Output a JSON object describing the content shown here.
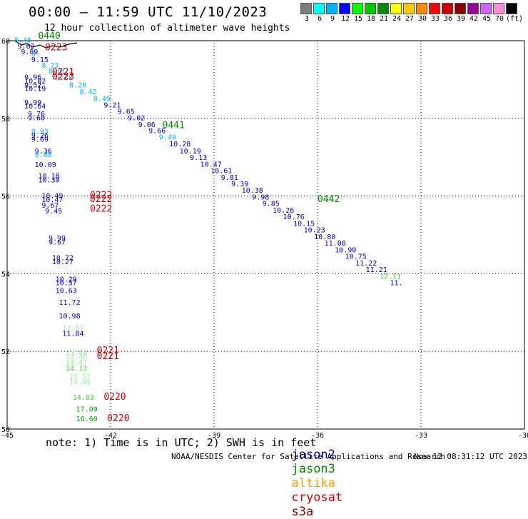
{
  "header": {
    "title": "00:00 – 11:59 UTC 11/10/2023",
    "subtitle": "12 hour collection of altimeter wave heights"
  },
  "color_scale": {
    "colors": [
      "#7d7d7d",
      "#00ffff",
      "#00b4ff",
      "#0000ff",
      "#00ff00",
      "#00c800",
      "#008c00",
      "#ffff00",
      "#ffc800",
      "#ff8c00",
      "#ff0000",
      "#c80000",
      "#8c0000",
      "#9b009b",
      "#d264ff",
      "#ff8cd7",
      "#000000"
    ],
    "labels": [
      "3",
      "6",
      "9",
      "12",
      "15",
      "18",
      "21",
      "24",
      "27",
      "30",
      "33",
      "36",
      "39",
      "42",
      "45",
      "70",
      "(ft)"
    ]
  },
  "satellites": {
    "jason2": {
      "name": "jason2",
      "color": "#0000cc"
    },
    "jason3": {
      "name": "jason3",
      "color": "#008800"
    },
    "altika": {
      "name": "altika",
      "color": "#ff9900"
    },
    "cryosat": {
      "name": "cryosat",
      "color": "#cc0000"
    },
    "s3a": {
      "name": "s3a",
      "color": "#880000"
    }
  },
  "footnote": "note: 1) Time is in UTC; 2) SWH is in feet",
  "credit": {
    "left": "NOAA/NESDIS Center for Satellite Applications and Research",
    "right": "Nov 12 08:31:12 UTC 2023"
  },
  "chart_data": {
    "type": "scatter",
    "xlim": [
      -45,
      -30
    ],
    "ylim": [
      50,
      60
    ],
    "x_ticks": [
      -45,
      -42,
      -39,
      -36,
      -33,
      -30
    ],
    "y_ticks": [
      50,
      52,
      54,
      56,
      58,
      60
    ],
    "grid": true,
    "wave_heights": [
      {
        "x": -44.8,
        "y": 59.95,
        "text": "8.48",
        "color": "#00b4ff"
      },
      {
        "x": -44.7,
        "y": 59.8,
        "text": "9.62",
        "color": "#0000cc"
      },
      {
        "x": -44.6,
        "y": 59.65,
        "text": "9.89",
        "color": "#0000cc"
      },
      {
        "x": -44.3,
        "y": 59.6,
        "text": "8.",
        "color": "#00b4ff"
      },
      {
        "x": -44.3,
        "y": 59.45,
        "text": "9.15",
        "color": "#0000cc"
      },
      {
        "x": -44.0,
        "y": 59.3,
        "text": "8.73",
        "color": "#00b4ff"
      },
      {
        "x": -43.8,
        "y": 59.15,
        "text": "8.91",
        "color": "#00b4ff"
      },
      {
        "x": -43.6,
        "y": 58.98,
        "text": "8.68",
        "color": "#00b4ff"
      },
      {
        "x": -43.2,
        "y": 58.8,
        "text": "8.28",
        "color": "#00b4ff"
      },
      {
        "x": -42.9,
        "y": 58.62,
        "text": "8.42",
        "color": "#00b4ff"
      },
      {
        "x": -42.5,
        "y": 58.45,
        "text": "8.49",
        "color": "#00b4ff"
      },
      {
        "x": -42.2,
        "y": 58.28,
        "text": "9.21",
        "color": "#0000cc"
      },
      {
        "x": -41.8,
        "y": 58.12,
        "text": "9.65",
        "color": "#0000cc"
      },
      {
        "x": -41.5,
        "y": 57.95,
        "text": "9.02",
        "color": "#0000cc"
      },
      {
        "x": -41.2,
        "y": 57.78,
        "text": "9.06",
        "color": "#0000cc"
      },
      {
        "x": -40.9,
        "y": 57.62,
        "text": "9.66",
        "color": "#0000cc"
      },
      {
        "x": -40.6,
        "y": 57.45,
        "text": "9.49",
        "color": "#00b4ff"
      },
      {
        "x": -40.3,
        "y": 57.28,
        "text": "10.28",
        "color": "#0000cc"
      },
      {
        "x": -40.0,
        "y": 57.1,
        "text": "10.19",
        "color": "#0000cc"
      },
      {
        "x": -39.7,
        "y": 56.93,
        "text": "9.13",
        "color": "#0000cc"
      },
      {
        "x": -39.4,
        "y": 56.76,
        "text": "10.47",
        "color": "#0000cc"
      },
      {
        "x": -39.1,
        "y": 56.59,
        "text": "10.61",
        "color": "#0000cc"
      },
      {
        "x": -38.8,
        "y": 56.42,
        "text": "9.81",
        "color": "#0000cc"
      },
      {
        "x": -38.5,
        "y": 56.25,
        "text": "9.39",
        "color": "#0000cc"
      },
      {
        "x": -38.2,
        "y": 56.08,
        "text": "10.38",
        "color": "#0000cc"
      },
      {
        "x": -37.9,
        "y": 55.91,
        "text": "9.98",
        "color": "#0000cc"
      },
      {
        "x": -37.6,
        "y": 55.74,
        "text": "9.85",
        "color": "#0000cc"
      },
      {
        "x": -37.3,
        "y": 55.57,
        "text": "10.26",
        "color": "#0000cc"
      },
      {
        "x": -37.0,
        "y": 55.4,
        "text": "10.76",
        "color": "#0000cc"
      },
      {
        "x": -36.7,
        "y": 55.23,
        "text": "10.15",
        "color": "#0000cc"
      },
      {
        "x": -36.4,
        "y": 55.06,
        "text": "10.23",
        "color": "#0000cc"
      },
      {
        "x": -36.1,
        "y": 54.89,
        "text": "10.80",
        "color": "#0000cc"
      },
      {
        "x": -35.8,
        "y": 54.72,
        "text": "11.08",
        "color": "#0000cc"
      },
      {
        "x": -35.5,
        "y": 54.55,
        "text": "10.90",
        "color": "#0000cc"
      },
      {
        "x": -35.2,
        "y": 54.38,
        "text": "10.75",
        "color": "#0000cc"
      },
      {
        "x": -34.9,
        "y": 54.21,
        "text": "11.22",
        "color": "#0000cc"
      },
      {
        "x": -34.6,
        "y": 54.04,
        "text": "11.21",
        "color": "#0000cc"
      },
      {
        "x": -34.2,
        "y": 53.87,
        "text": "12.11",
        "color": "#44cc44"
      },
      {
        "x": -33.9,
        "y": 53.7,
        "text": "11.",
        "color": "#0000cc"
      },
      {
        "x": -44.5,
        "y": 59.0,
        "text": "9.96",
        "color": "#0000cc"
      },
      {
        "x": -44.5,
        "y": 58.9,
        "text": "10.02",
        "color": "#0000cc"
      },
      {
        "x": -44.5,
        "y": 58.8,
        "text": "9.52",
        "color": "#0000cc"
      },
      {
        "x": -44.5,
        "y": 58.7,
        "text": "10.19",
        "color": "#0000cc"
      },
      {
        "x": -44.5,
        "y": 58.35,
        "text": "9.99",
        "color": "#0000cc"
      },
      {
        "x": -44.5,
        "y": 58.25,
        "text": "10.64",
        "color": "#0000cc"
      },
      {
        "x": -44.4,
        "y": 58.05,
        "text": "9.76",
        "color": "#0000cc"
      },
      {
        "x": -44.4,
        "y": 57.95,
        "text": "9.60",
        "color": "#0000cc"
      },
      {
        "x": -44.3,
        "y": 57.6,
        "text": "8.93",
        "color": "#00b4ff"
      },
      {
        "x": -44.3,
        "y": 57.5,
        "text": "9.26",
        "color": "#0000cc"
      },
      {
        "x": -44.3,
        "y": 57.4,
        "text": "9.69",
        "color": "#0000cc"
      },
      {
        "x": -44.2,
        "y": 57.1,
        "text": "9.36",
        "color": "#0000cc"
      },
      {
        "x": -44.2,
        "y": 57.0,
        "text": "8.88",
        "color": "#00b4ff"
      },
      {
        "x": -44.2,
        "y": 56.75,
        "text": "10.09",
        "color": "#0000cc"
      },
      {
        "x": -44.1,
        "y": 56.45,
        "text": "10.18",
        "color": "#0000cc"
      },
      {
        "x": -44.1,
        "y": 56.35,
        "text": "10.30",
        "color": "#0000cc"
      },
      {
        "x": -44.0,
        "y": 55.95,
        "text": "10.49",
        "color": "#0000cc"
      },
      {
        "x": -44.0,
        "y": 55.85,
        "text": "10.47",
        "color": "#0000cc"
      },
      {
        "x": -44.0,
        "y": 55.7,
        "text": "9.67",
        "color": "#0000cc"
      },
      {
        "x": -43.9,
        "y": 55.55,
        "text": "9.45",
        "color": "#0000cc"
      },
      {
        "x": -43.8,
        "y": 54.85,
        "text": "9.99",
        "color": "#0000cc"
      },
      {
        "x": -43.8,
        "y": 54.75,
        "text": "9.67",
        "color": "#0000cc"
      },
      {
        "x": -43.7,
        "y": 54.35,
        "text": "10.72",
        "color": "#0000cc"
      },
      {
        "x": -43.7,
        "y": 54.25,
        "text": "10.27",
        "color": "#0000cc"
      },
      {
        "x": -43.6,
        "y": 53.8,
        "text": "10.29",
        "color": "#0000cc"
      },
      {
        "x": -43.6,
        "y": 53.7,
        "text": "10.57",
        "color": "#0000cc"
      },
      {
        "x": -43.6,
        "y": 53.5,
        "text": "10.63",
        "color": "#0000cc"
      },
      {
        "x": -43.5,
        "y": 53.2,
        "text": "11.72",
        "color": "#0000cc"
      },
      {
        "x": -43.5,
        "y": 52.85,
        "text": "10.98",
        "color": "#0000cc"
      },
      {
        "x": -43.4,
        "y": 52.55,
        "text": "12.61",
        "color": "#99ee99"
      },
      {
        "x": -43.4,
        "y": 52.4,
        "text": "11.84",
        "color": "#0000cc"
      },
      {
        "x": -43.3,
        "y": 51.9,
        "text": "13.64",
        "color": "#99ee99"
      },
      {
        "x": -43.3,
        "y": 51.8,
        "text": "13.46",
        "color": "#99ee99"
      },
      {
        "x": -43.3,
        "y": 51.65,
        "text": "13.47",
        "color": "#99ee99"
      },
      {
        "x": -43.3,
        "y": 51.5,
        "text": "14.13",
        "color": "#44cc44"
      },
      {
        "x": -43.2,
        "y": 51.3,
        "text": "13.57",
        "color": "#99ee99"
      },
      {
        "x": -43.2,
        "y": 51.15,
        "text": "14.85",
        "color": "#99ee99"
      },
      {
        "x": -43.1,
        "y": 50.75,
        "text": "14.83",
        "color": "#44cc44"
      },
      {
        "x": -43.0,
        "y": 50.45,
        "text": "17.09",
        "color": "#00aa00"
      },
      {
        "x": -43.0,
        "y": 50.2,
        "text": "16.60",
        "color": "#00aa00"
      }
    ],
    "pass_times": [
      {
        "x": -44.1,
        "y": 60.05,
        "text": "0440",
        "color": "#008800"
      },
      {
        "x": -43.9,
        "y": 59.75,
        "text": "0223",
        "color": "#cc0000"
      },
      {
        "x": -43.7,
        "y": 59.12,
        "text": "0221",
        "color": "#cc0000"
      },
      {
        "x": -43.7,
        "y": 59.0,
        "text": "0223",
        "color": "#cc0000"
      },
      {
        "x": -40.5,
        "y": 57.75,
        "text": "0441",
        "color": "#008800"
      },
      {
        "x": -42.6,
        "y": 55.95,
        "text": "0222",
        "color": "#cc0000"
      },
      {
        "x": -42.6,
        "y": 55.85,
        "text": "0222",
        "color": "#cc0000"
      },
      {
        "x": -42.6,
        "y": 55.6,
        "text": "0222",
        "color": "#cc0000"
      },
      {
        "x": -36.0,
        "y": 55.85,
        "text": "0442",
        "color": "#008800"
      },
      {
        "x": -42.4,
        "y": 51.95,
        "text": "0221",
        "color": "#cc0000"
      },
      {
        "x": -42.4,
        "y": 51.8,
        "text": "0221",
        "color": "#cc0000"
      },
      {
        "x": -42.2,
        "y": 50.75,
        "text": "0220",
        "color": "#cc0000"
      },
      {
        "x": -42.1,
        "y": 50.2,
        "text": "0220",
        "color": "#cc0000"
      }
    ]
  }
}
